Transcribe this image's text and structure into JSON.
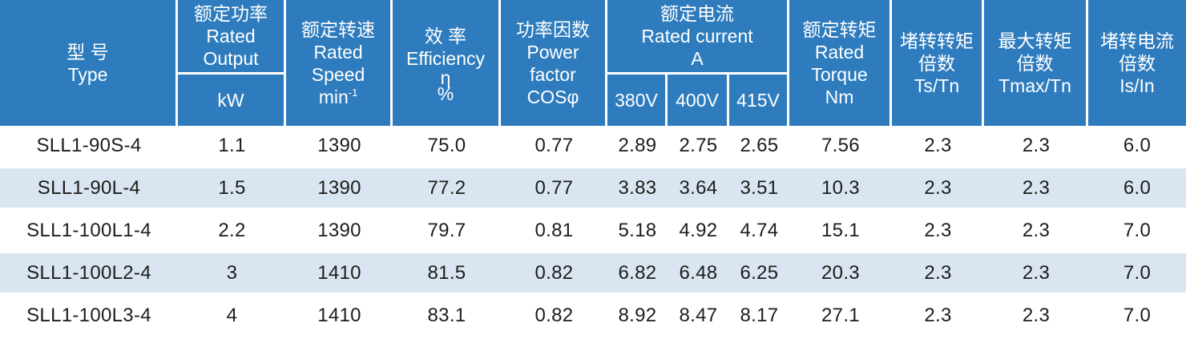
{
  "colors": {
    "header_blue": "#2e7cbe",
    "row_alt_blue": "#d9e5f1",
    "header_text": "#ffffff",
    "body_text": "#1d1d1b"
  },
  "table": {
    "header": {
      "type": {
        "zh": "型 号",
        "en": "Type"
      },
      "rated_output": {
        "zh": "额定功率",
        "en1": "Rated",
        "en2": "Output",
        "unit": "kW"
      },
      "rated_speed": {
        "zh": "额定转速",
        "en1": "Rated",
        "en2": "Speed",
        "unit_base": "min",
        "unit_sup": "-1"
      },
      "efficiency": {
        "zh": "效 率",
        "en": "Efficiency",
        "symbol": "η",
        "unit": "%"
      },
      "power_factor": {
        "zh": "功率因数",
        "en1": "Power",
        "en2": "factor",
        "symbol": "COSφ"
      },
      "rated_current": {
        "zh": "额定电流",
        "en": "Rated current",
        "unit": "A",
        "sub": [
          "380V",
          "400V",
          "415V"
        ]
      },
      "rated_torque": {
        "zh": "额定转矩",
        "en1": "Rated",
        "en2": "Torque",
        "unit": "Nm"
      },
      "locked_rotor_torque": {
        "zh1": "堵转转矩",
        "zh2": "倍数",
        "symbol": "Ts/Tn"
      },
      "max_torque": {
        "zh1": "最大转矩",
        "zh2": "倍数",
        "symbol": "Tmax/Tn"
      },
      "locked_rotor_current": {
        "zh1": "堵转电流",
        "zh2": "倍数",
        "symbol": "Is/In"
      }
    },
    "rows": [
      {
        "type": "SLL1-90S-4",
        "kw": "1.1",
        "speed": "1390",
        "eff": "75.0",
        "pf": "0.77",
        "i380": "2.89",
        "i400": "2.75",
        "i415": "2.65",
        "torque": "7.56",
        "ts_tn": "2.3",
        "tmax_tn": "2.3",
        "is_in": "6.0"
      },
      {
        "type": "SLL1-90L-4",
        "kw": "1.5",
        "speed": "1390",
        "eff": "77.2",
        "pf": "0.77",
        "i380": "3.83",
        "i400": "3.64",
        "i415": "3.51",
        "torque": "10.3",
        "ts_tn": "2.3",
        "tmax_tn": "2.3",
        "is_in": "6.0"
      },
      {
        "type": "SLL1-100L1-4",
        "kw": "2.2",
        "speed": "1390",
        "eff": "79.7",
        "pf": "0.81",
        "i380": "5.18",
        "i400": "4.92",
        "i415": "4.74",
        "torque": "15.1",
        "ts_tn": "2.3",
        "tmax_tn": "2.3",
        "is_in": "7.0"
      },
      {
        "type": "SLL1-100L2-4",
        "kw": "3",
        "speed": "1410",
        "eff": "81.5",
        "pf": "0.82",
        "i380": "6.82",
        "i400": "6.48",
        "i415": "6.25",
        "torque": "20.3",
        "ts_tn": "2.3",
        "tmax_tn": "2.3",
        "is_in": "7.0"
      },
      {
        "type": "SLL1-100L3-4",
        "kw": "4",
        "speed": "1410",
        "eff": "83.1",
        "pf": "0.82",
        "i380": "8.92",
        "i400": "8.47",
        "i415": "8.17",
        "torque": "27.1",
        "ts_tn": "2.3",
        "tmax_tn": "2.3",
        "is_in": "7.0"
      }
    ]
  }
}
